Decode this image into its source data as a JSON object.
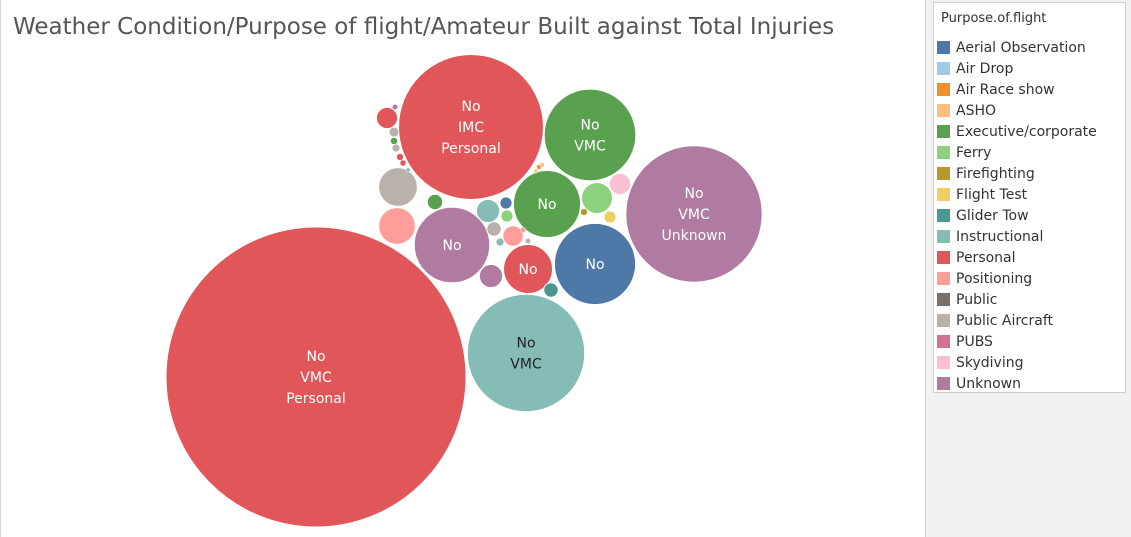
{
  "chart_data": {
    "type": "bubble",
    "title": "Weather Condition/Purpose of flight/Amateur Built against Total Injuries",
    "size_measure": "Total Injuries",
    "color_dimension": "Purpose.of.flight",
    "legend": {
      "title": "Purpose.of.flight",
      "placement": "right",
      "items": [
        {
          "name": "Aerial Observation",
          "color": "#4e79a7"
        },
        {
          "name": "Air Drop",
          "color": "#a0cbe8"
        },
        {
          "name": "Air Race show",
          "color": "#f28e2b"
        },
        {
          "name": "ASHO",
          "color": "#ffbe7d"
        },
        {
          "name": "Executive/corporate",
          "color": "#59a14f"
        },
        {
          "name": "Ferry",
          "color": "#8cd17d"
        },
        {
          "name": "Firefighting",
          "color": "#b6992d"
        },
        {
          "name": "Flight Test",
          "color": "#f1ce63"
        },
        {
          "name": "Glider Tow",
          "color": "#499894"
        },
        {
          "name": "Instructional",
          "color": "#86bcb6"
        },
        {
          "name": "Personal",
          "color": "#e15759"
        },
        {
          "name": "Positioning",
          "color": "#ff9d9a"
        },
        {
          "name": "Public",
          "color": "#79706e"
        },
        {
          "name": "Public Aircraft",
          "color": "#bab0ac"
        },
        {
          "name": "PUBS",
          "color": "#d37295"
        },
        {
          "name": "Skydiving",
          "color": "#fabfd2"
        },
        {
          "name": "Unknown",
          "color": "#b07aa1"
        }
      ]
    },
    "bubbles": [
      {
        "purpose": "Personal",
        "labels": [
          "No",
          "VMC",
          "Personal"
        ],
        "total_injuries": 15000
      },
      {
        "purpose": "Personal",
        "labels": [
          "No",
          "IMC",
          "Personal"
        ],
        "total_injuries": 3500
      },
      {
        "purpose": "Unknown",
        "labels": [
          "No",
          "VMC",
          "Unknown"
        ],
        "total_injuries": 3100
      },
      {
        "purpose": "Instructional",
        "labels": [
          "No",
          "VMC"
        ],
        "total_injuries": 2300
      },
      {
        "purpose": "Executive/corporate",
        "labels": [
          "No",
          "VMC"
        ],
        "total_injuries": 1400
      },
      {
        "purpose": "Aerial Observation",
        "labels": [
          "No"
        ],
        "total_injuries": 1100
      },
      {
        "purpose": "Unknown",
        "labels": [
          "No"
        ],
        "total_injuries": 950
      },
      {
        "purpose": "Executive/corporate",
        "labels": [
          "No"
        ],
        "total_injuries": 750
      },
      {
        "purpose": "Personal",
        "labels": [
          "No"
        ],
        "total_injuries": 400
      },
      {
        "purpose": "Public Aircraft",
        "labels": [],
        "total_injuries": 250
      },
      {
        "purpose": "Positioning",
        "labels": [],
        "total_injuries": 225
      },
      {
        "purpose": "Ferry",
        "labels": [],
        "total_injuries": 160
      },
      {
        "purpose": "Skydiving",
        "labels": [],
        "total_injuries": 75
      },
      {
        "purpose": "Personal",
        "labels": [],
        "total_injuries": 75
      },
      {
        "purpose": "Unknown",
        "labels": [],
        "total_injuries": 90
      },
      {
        "purpose": "Instructional",
        "labels": [],
        "total_injuries": 90
      },
      {
        "purpose": "Positioning",
        "labels": [],
        "total_injuries": 70
      },
      {
        "purpose": "Executive/corporate",
        "labels": [],
        "total_injuries": 40
      },
      {
        "purpose": "Glider Tow",
        "labels": [],
        "total_injuries": 35
      },
      {
        "purpose": "Public Aircraft",
        "labels": [],
        "total_injuries": 35
      },
      {
        "purpose": "Flight Test",
        "labels": [],
        "total_injuries": 25
      },
      {
        "purpose": "Aerial Observation",
        "labels": [],
        "total_injuries": 25
      },
      {
        "purpose": "Ferry",
        "labels": [],
        "total_injuries": 25
      },
      {
        "purpose": "Public Aircraft",
        "labels": [],
        "total_injuries": 15
      },
      {
        "purpose": "Public Aircraft",
        "labels": [],
        "total_injuries": 10
      },
      {
        "purpose": "Firefighting",
        "labels": [],
        "total_injuries": 8
      },
      {
        "purpose": "Executive/corporate",
        "labels": [],
        "total_injuries": 8
      },
      {
        "purpose": "Instructional",
        "labels": [],
        "total_injuries": 10
      },
      {
        "purpose": "Personal",
        "labels": [],
        "total_injuries": 8
      },
      {
        "purpose": "Personal",
        "labels": [],
        "total_injuries": 6
      },
      {
        "purpose": "Unknown",
        "labels": [],
        "total_injuries": 5
      },
      {
        "purpose": "Public Aircraft",
        "labels": [],
        "total_injuries": 5
      },
      {
        "purpose": "Positioning",
        "labels": [],
        "total_injuries": 5
      },
      {
        "purpose": "Air Race show",
        "labels": [],
        "total_injuries": 4
      },
      {
        "purpose": "ASHO",
        "labels": [],
        "total_injuries": 4
      },
      {
        "purpose": "Flight Test",
        "labels": [],
        "total_injuries": 3
      },
      {
        "purpose": "Instructional",
        "labels": [],
        "total_injuries": 3
      }
    ]
  }
}
